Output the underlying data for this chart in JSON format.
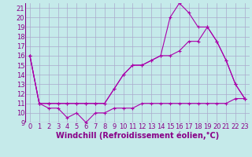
{
  "background_color": "#c5eaea",
  "grid_color": "#aaaacc",
  "line_color": "#aa00aa",
  "marker_color": "#aa00aa",
  "xlim": [
    -0.5,
    23.5
  ],
  "ylim": [
    9,
    21.5
  ],
  "xticks": [
    0,
    1,
    2,
    3,
    4,
    5,
    6,
    7,
    8,
    9,
    10,
    11,
    12,
    13,
    14,
    15,
    16,
    17,
    18,
    19,
    20,
    21,
    22,
    23
  ],
  "yticks": [
    9,
    10,
    11,
    12,
    13,
    14,
    15,
    16,
    17,
    18,
    19,
    20,
    21
  ],
  "xlabel": "Windchill (Refroidissement éolien,°C)",
  "xlabel_fontsize": 7.0,
  "tick_fontsize": 6.0,
  "series1_x": [
    0,
    1,
    2,
    3,
    4,
    5,
    6,
    7,
    8,
    9,
    10,
    11,
    12,
    13,
    14,
    15,
    16,
    17,
    18,
    19,
    20,
    21,
    22,
    23
  ],
  "series1_y": [
    16,
    11,
    10.5,
    10.5,
    9.5,
    10,
    9,
    10,
    10,
    10.5,
    10.5,
    10.5,
    11,
    11,
    11,
    11,
    11,
    11,
    11,
    11,
    11,
    11,
    11.5,
    11.5
  ],
  "series2_x": [
    0,
    1,
    2,
    3,
    4,
    5,
    6,
    7,
    8,
    9,
    10,
    11,
    12,
    13,
    14,
    15,
    16,
    17,
    18,
    19,
    20,
    21,
    22,
    23
  ],
  "series2_y": [
    16,
    11,
    11,
    11,
    11,
    11,
    11,
    11,
    11,
    12.5,
    14,
    15,
    15,
    15.5,
    16,
    16,
    16.5,
    17.5,
    17.5,
    19,
    17.5,
    15.5,
    13,
    11.5
  ],
  "series3_x": [
    0,
    1,
    2,
    3,
    4,
    5,
    6,
    7,
    8,
    9,
    10,
    11,
    12,
    13,
    14,
    15,
    16,
    17,
    18,
    19,
    20,
    21,
    22,
    23
  ],
  "series3_y": [
    16,
    11,
    11,
    11,
    11,
    11,
    11,
    11,
    11,
    12.5,
    14,
    15,
    15,
    15.5,
    16,
    20,
    21.5,
    20.5,
    19,
    19,
    17.5,
    15.5,
    13,
    11.5
  ]
}
